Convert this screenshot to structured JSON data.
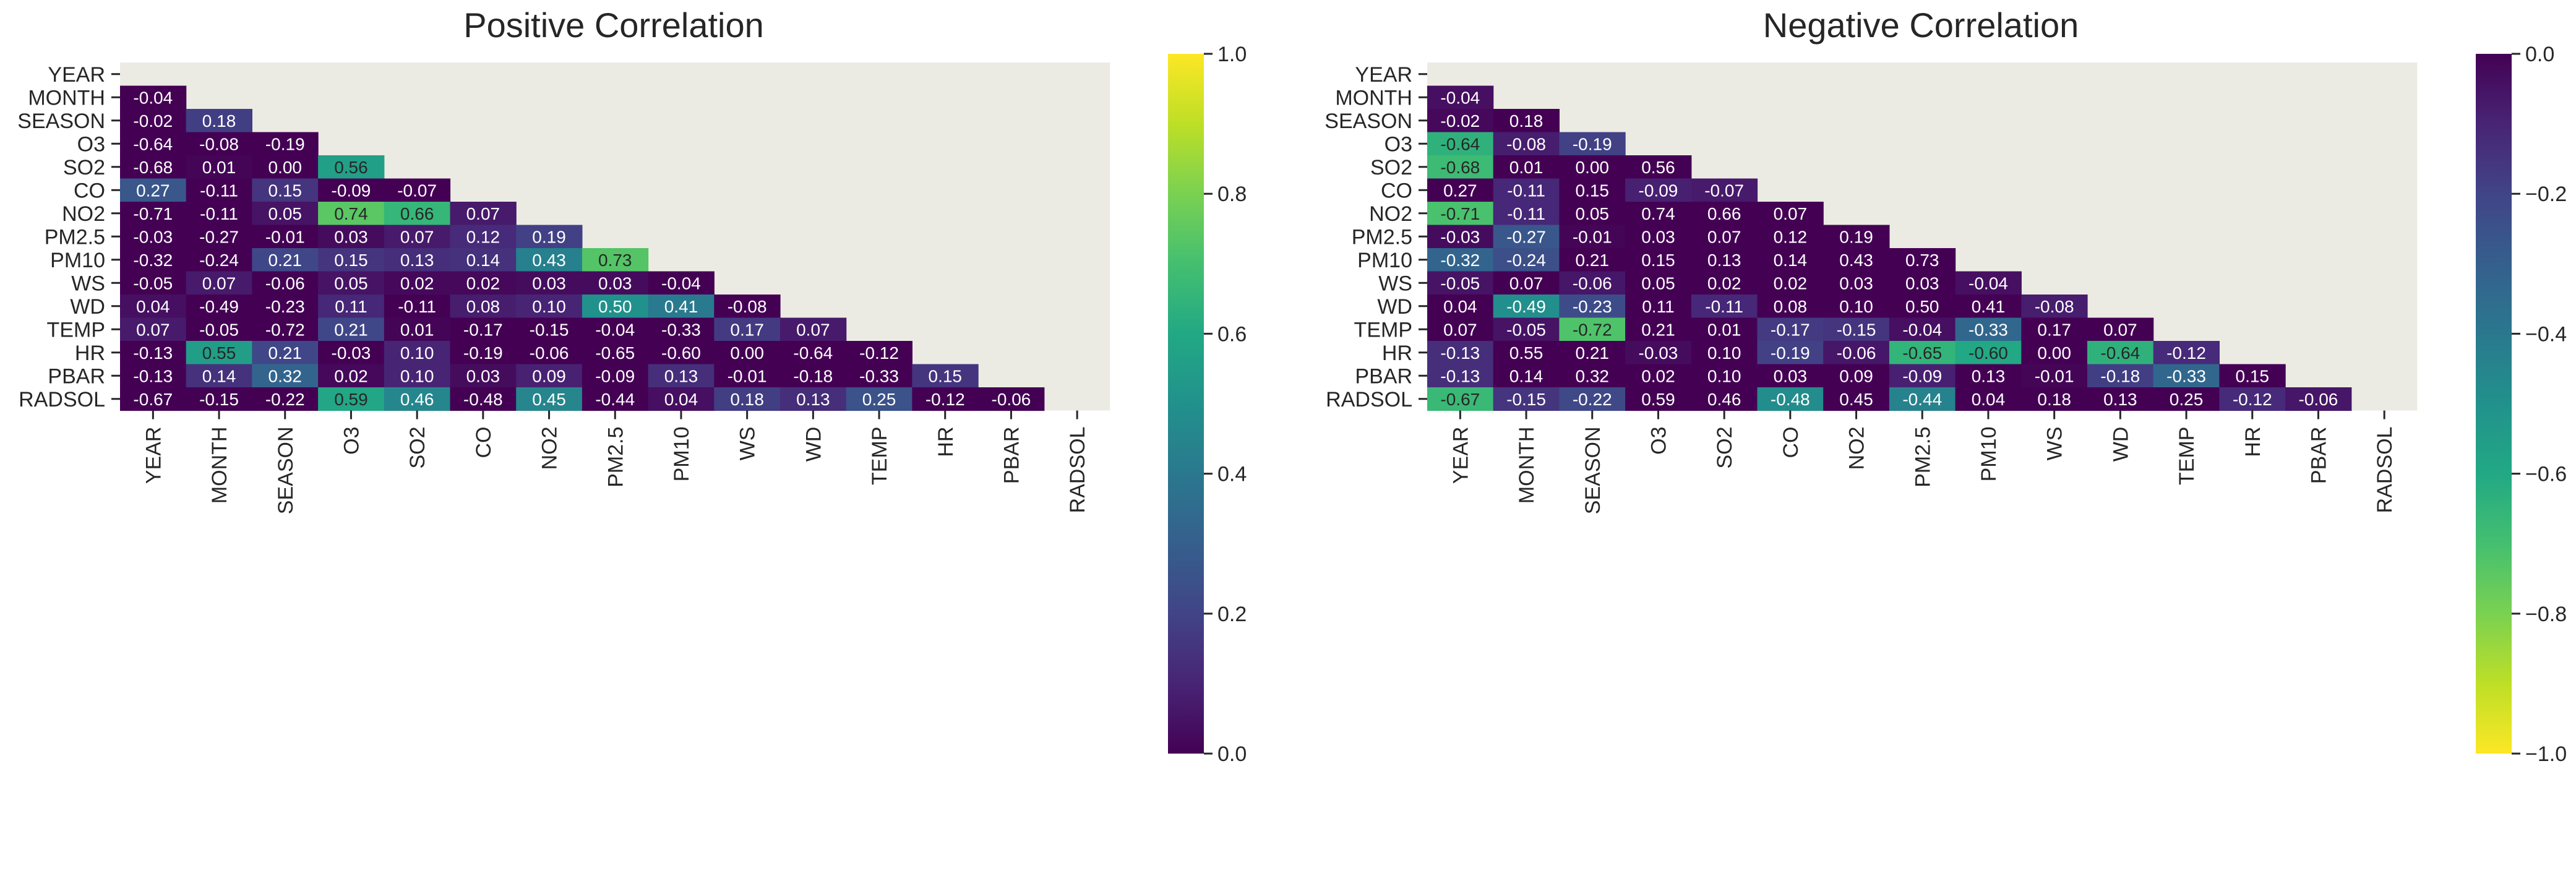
{
  "variables": [
    "YEAR",
    "MONTH",
    "SEASON",
    "O3",
    "SO2",
    "CO",
    "NO2",
    "PM2.5",
    "PM10",
    "WS",
    "WD",
    "TEMP",
    "HR",
    "PBAR",
    "RADSOL"
  ],
  "matrix": [
    [],
    [
      "-0.04"
    ],
    [
      "-0.02",
      "0.18"
    ],
    [
      "-0.64",
      "-0.08",
      "-0.19"
    ],
    [
      "-0.68",
      "0.01",
      "0.00",
      "0.56"
    ],
    [
      "0.27",
      "-0.11",
      "0.15",
      "-0.09",
      "-0.07"
    ],
    [
      "-0.71",
      "-0.11",
      "0.05",
      "0.74",
      "0.66",
      "0.07"
    ],
    [
      "-0.03",
      "-0.27",
      "-0.01",
      "0.03",
      "0.07",
      "0.12",
      "0.19"
    ],
    [
      "-0.32",
      "-0.24",
      "0.21",
      "0.15",
      "0.13",
      "0.14",
      "0.43",
      "0.73"
    ],
    [
      "-0.05",
      "0.07",
      "-0.06",
      "0.05",
      "0.02",
      "0.02",
      "0.03",
      "0.03",
      "-0.04"
    ],
    [
      "0.04",
      "-0.49",
      "-0.23",
      "0.11",
      "-0.11",
      "0.08",
      "0.10",
      "0.50",
      "0.41",
      "-0.08"
    ],
    [
      "0.07",
      "-0.05",
      "-0.72",
      "0.21",
      "0.01",
      "-0.17",
      "-0.15",
      "-0.04",
      "-0.33",
      "0.17",
      "0.07"
    ],
    [
      "-0.13",
      "0.55",
      "0.21",
      "-0.03",
      "0.10",
      "-0.19",
      "-0.06",
      "-0.65",
      "-0.60",
      "0.00",
      "-0.64",
      "-0.12"
    ],
    [
      "-0.13",
      "0.14",
      "0.32",
      "0.02",
      "0.10",
      "0.03",
      "0.09",
      "-0.09",
      "0.13",
      "-0.01",
      "-0.18",
      "-0.33",
      "0.15"
    ],
    [
      "-0.67",
      "-0.15",
      "-0.22",
      "0.59",
      "0.46",
      "-0.48",
      "0.45",
      "-0.44",
      "0.04",
      "0.18",
      "0.13",
      "0.25",
      "-0.12",
      "-0.06"
    ]
  ],
  "chart_data": [
    {
      "type": "heatmap",
      "title": "Positive Correlation",
      "colormap": "viridis",
      "vmin": 0.0,
      "vmax": 1.0,
      "mask": "upper-triangle",
      "colorbar_ticks": [
        "0.0",
        "0.2",
        "0.4",
        "0.6",
        "0.8",
        "1.0"
      ]
    },
    {
      "type": "heatmap",
      "title": "Negative Correlation",
      "colormap": "viridis_r",
      "vmin": -1.0,
      "vmax": 0.0,
      "mask": "upper-triangle",
      "colorbar_ticks": [
        "−1.0",
        "−0.8",
        "−0.6",
        "−0.4",
        "−0.2",
        "0.0"
      ]
    }
  ],
  "colors": {
    "mask_background": "#ecebe3",
    "annotation_light": "#ffffff",
    "annotation_dark": "#262626",
    "axis": "#262626"
  }
}
